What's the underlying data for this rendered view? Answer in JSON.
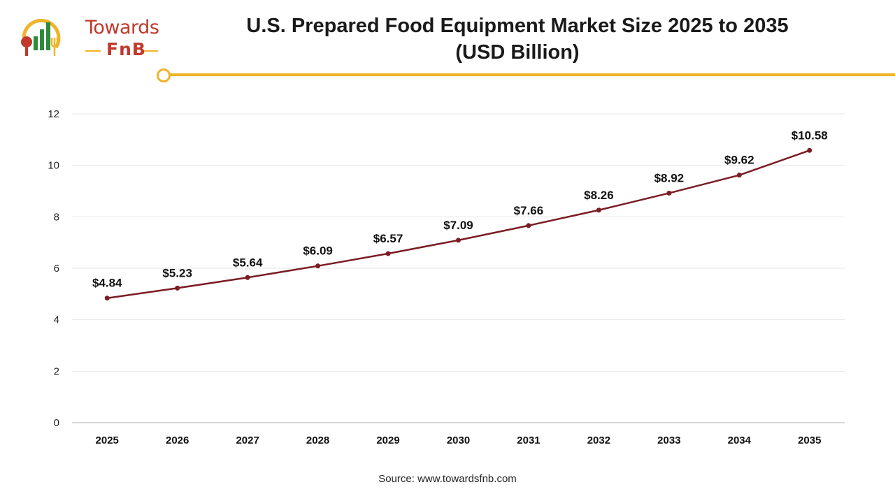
{
  "brand": {
    "word": "Towards",
    "sub": "FnB"
  },
  "header": {
    "title_line1": "U.S. Prepared Food Equipment Market Size 2025 to 2035",
    "title_line2": "(USD Billion)"
  },
  "footer": {
    "source": "Source: www.towardsfnb.com"
  },
  "colors": {
    "line": "#7b1c24",
    "accent": "#f0b429",
    "brand": "#c0392b",
    "grid": "#e6e6e6"
  },
  "chart_data": {
    "type": "line",
    "title": "U.S. Prepared Food Equipment Market Size 2025 to 2035 (USD Billion)",
    "xlabel": "",
    "ylabel": "",
    "categories": [
      "2025",
      "2026",
      "2027",
      "2028",
      "2029",
      "2030",
      "2031",
      "2032",
      "2033",
      "2034",
      "2035"
    ],
    "series": [
      {
        "values": [
          4.84,
          5.23,
          5.64,
          6.09,
          6.57,
          7.09,
          7.66,
          8.26,
          8.92,
          9.62,
          10.58
        ],
        "labels": [
          "$4.84",
          "$5.23",
          "$5.64",
          "$6.09",
          "$6.57",
          "$7.09",
          "$7.66",
          "$8.26",
          "$8.92",
          "$9.62",
          "$10.58"
        ]
      }
    ],
    "ylim": [
      0,
      12
    ],
    "yticks": [
      0,
      2,
      4,
      6,
      8,
      10,
      12
    ],
    "grid": true,
    "legend": "none"
  }
}
